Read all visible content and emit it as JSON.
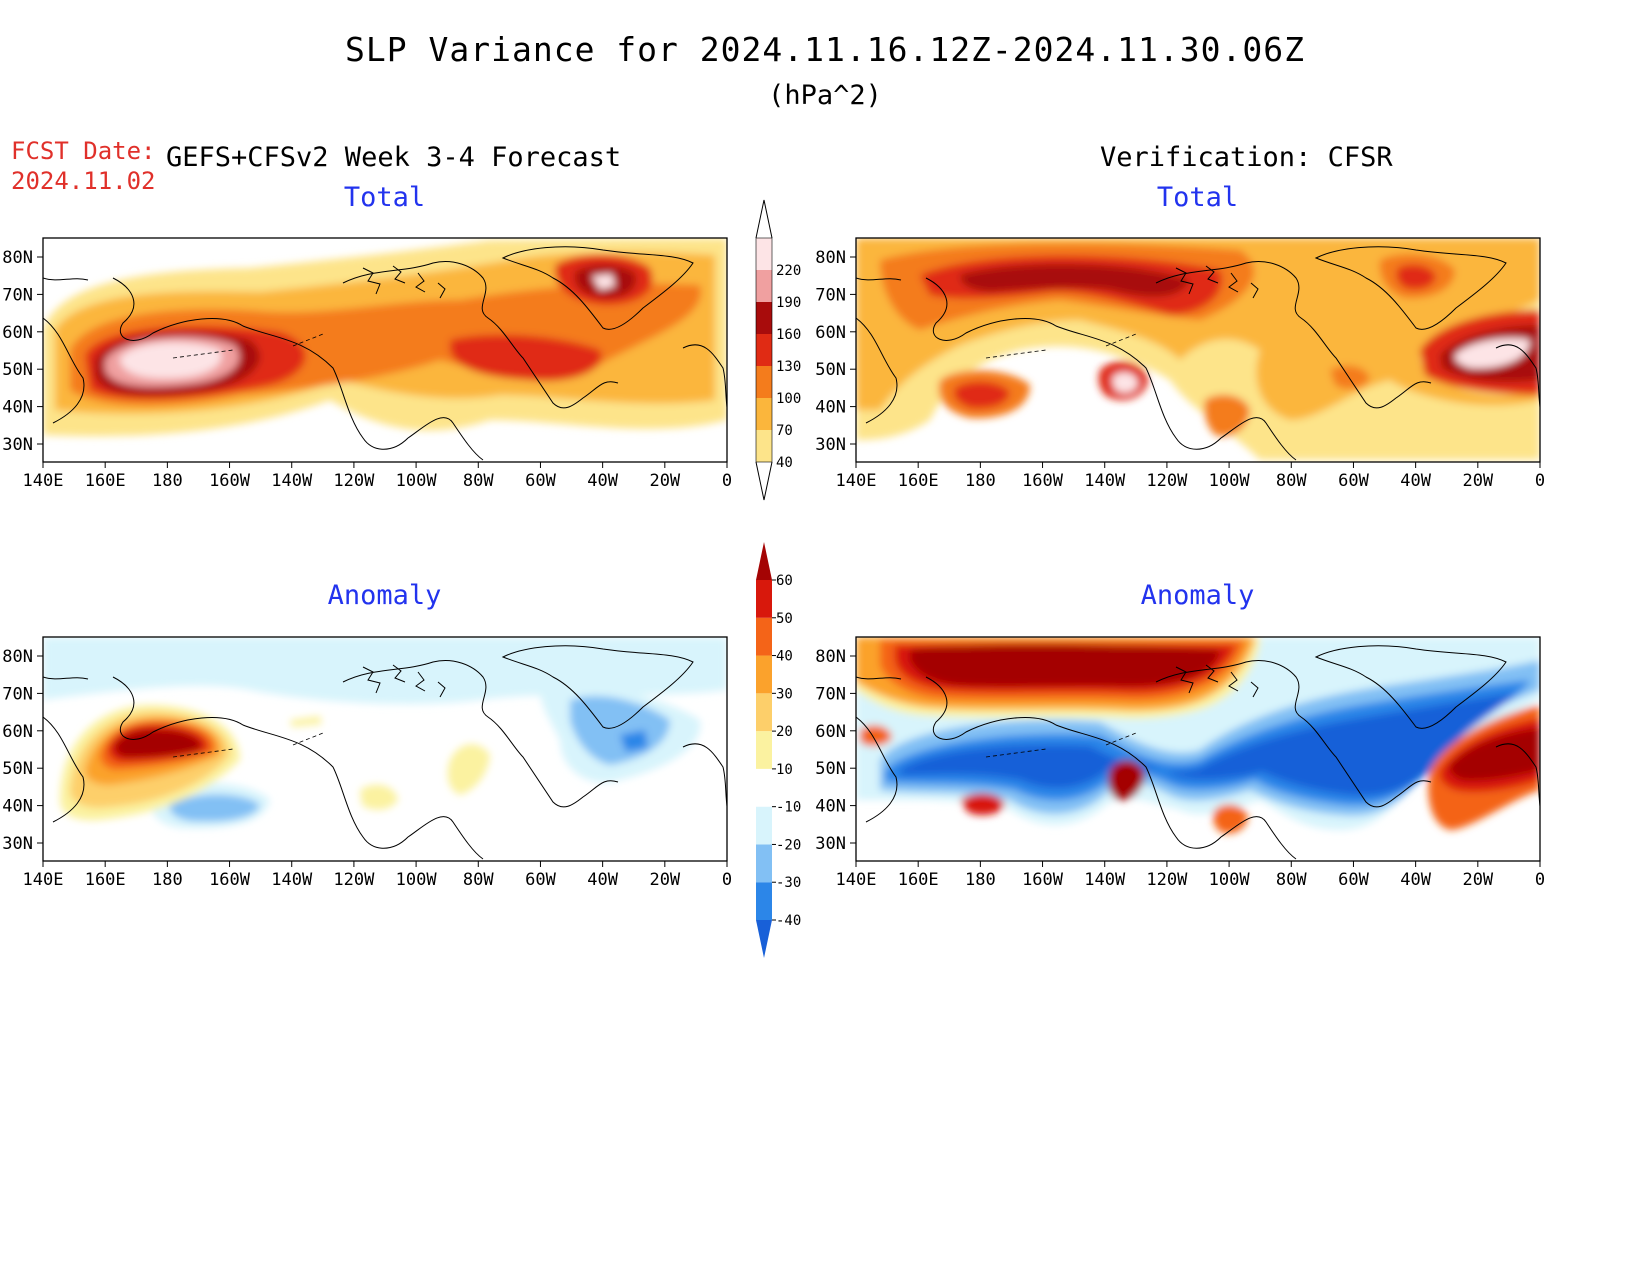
{
  "header": {
    "title": "SLP Variance for 2024.11.16.12Z-2024.11.30.06Z",
    "units": "(hPa^2)",
    "fcst_label": "FCST Date:",
    "fcst_date": "2024.11.02",
    "left_label": "GEFS+CFSv2 Week 3-4 Forecast",
    "right_label": "Verification: CFSR"
  },
  "panels": {
    "fcst_total": {
      "title": "Total"
    },
    "verif_total": {
      "title": "Total"
    },
    "fcst_anom": {
      "title": "Anomaly"
    },
    "verif_anom": {
      "title": "Anomaly"
    }
  },
  "axes": {
    "lat_labels": [
      "80N",
      "70N",
      "60N",
      "50N",
      "40N",
      "30N"
    ],
    "lon_labels": [
      "140E",
      "160E",
      "180",
      "160W",
      "140W",
      "120W",
      "100W",
      "80W",
      "60W",
      "40W",
      "20W",
      "0"
    ]
  },
  "colorbars": {
    "total": {
      "levels": [
        "40",
        "70",
        "100",
        "130",
        "160",
        "190",
        "220"
      ],
      "colors": [
        "#fde48a",
        "#fbb63c",
        "#f47c1c",
        "#e02b14",
        "#a80c0c",
        "#f0a0a0",
        "#fde4e6"
      ]
    },
    "anomaly": {
      "levels": [
        "-40",
        "-30",
        "-20",
        "-10",
        "10",
        "20",
        "30",
        "40",
        "50",
        "60"
      ],
      "colors": [
        "#1860d8",
        "#2c86e8",
        "#82c0f4",
        "#d8f4fc",
        "#ffffff",
        "#fbf2a0",
        "#fdcf6a",
        "#fba22c",
        "#f46418",
        "#d8180c",
        "#a40404"
      ]
    }
  }
}
